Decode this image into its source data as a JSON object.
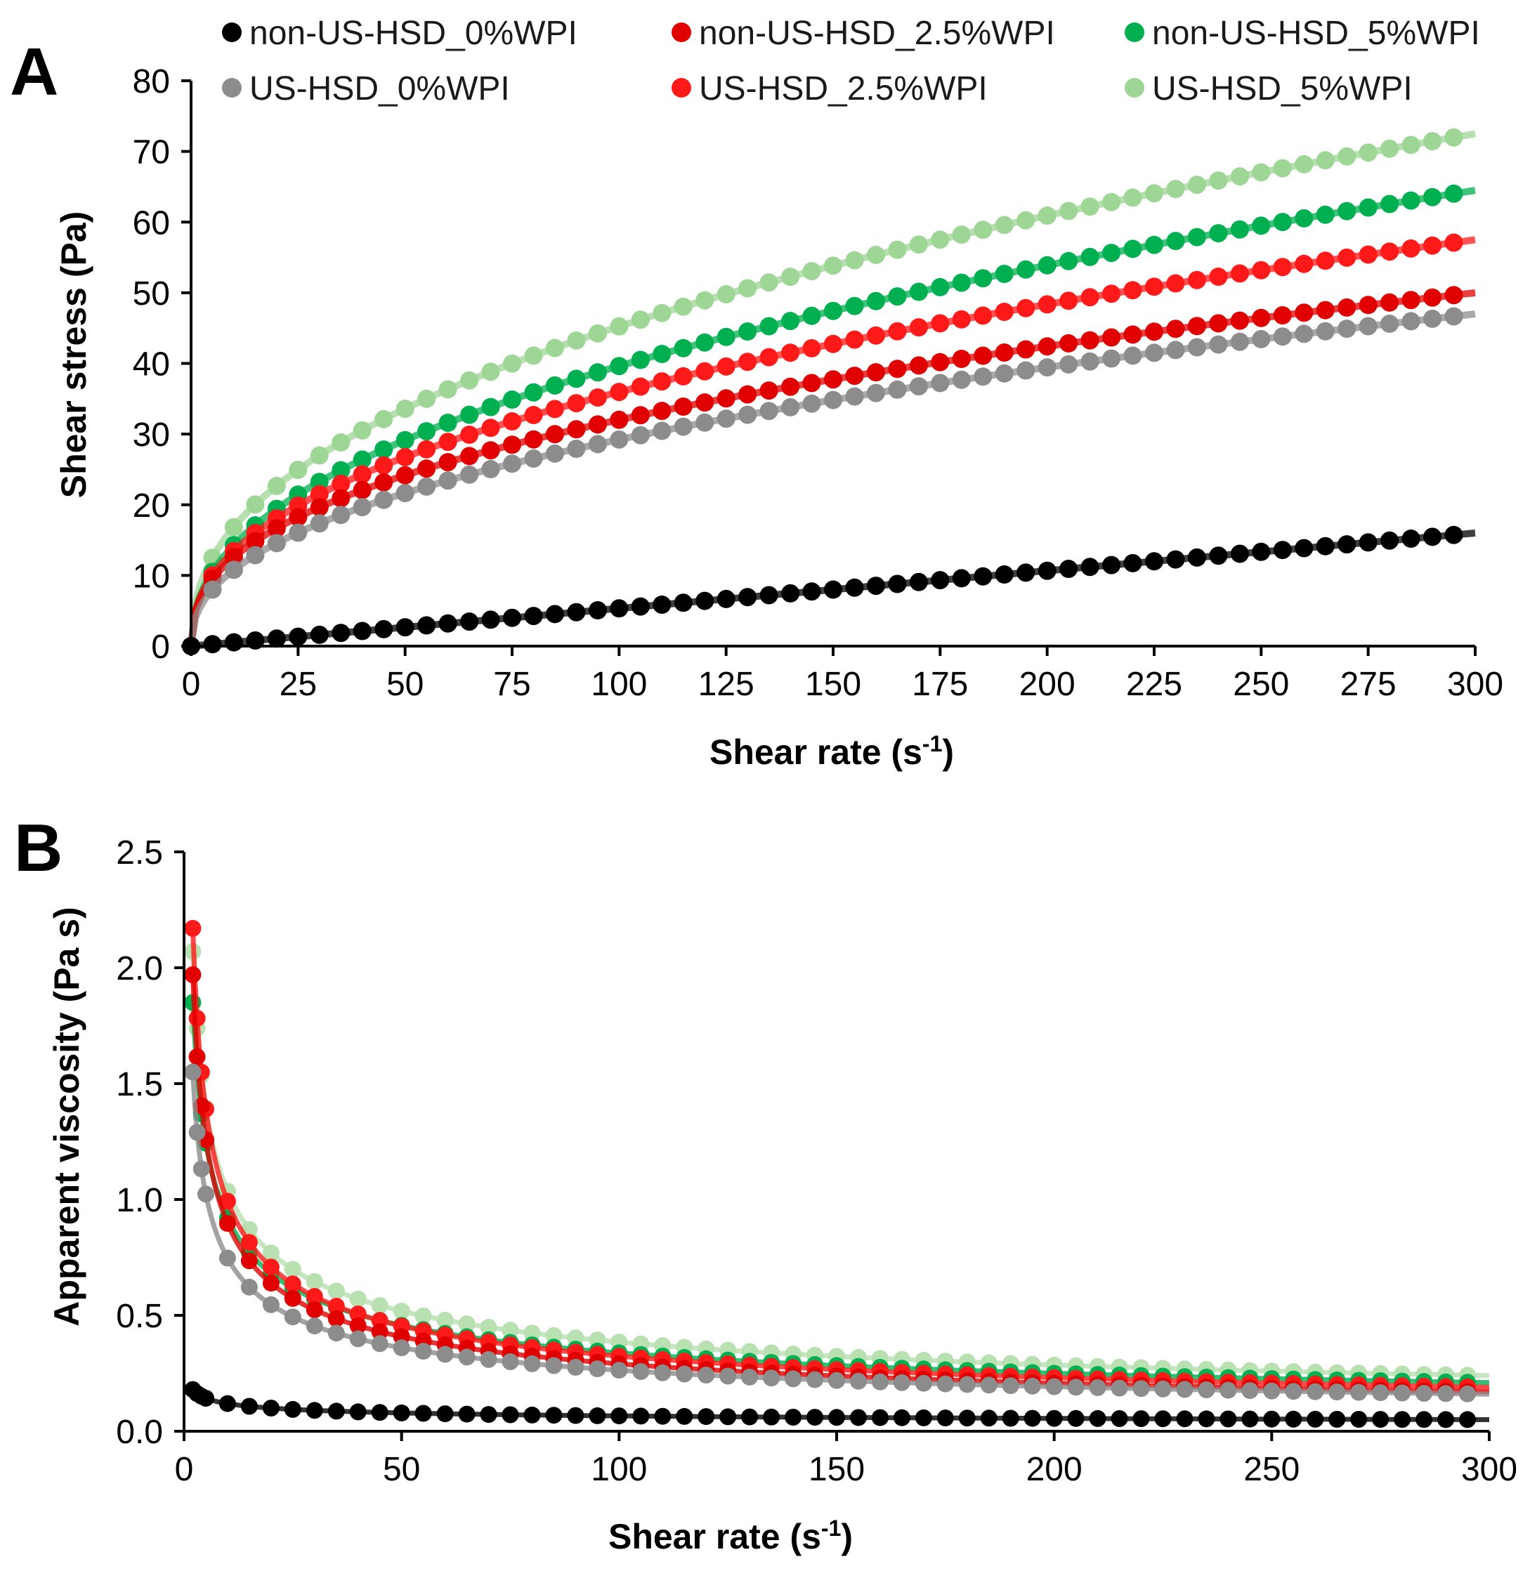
{
  "legend": {
    "entries": [
      {
        "label": "non-US-HSD_0%WPI",
        "color": "#000000"
      },
      {
        "label": "non-US-HSD_2.5%WPI",
        "color": "#e00000"
      },
      {
        "label": "non-US-HSD_5%WPI",
        "color": "#00b050"
      },
      {
        "label": "US-HSD_0%WPI",
        "color": "#8c8c8c"
      },
      {
        "label": "US-HSD_2.5%WPI",
        "color": "#ff1a1a"
      },
      {
        "label": "US-HSD_5%WPI",
        "color": "#9ed696"
      }
    ]
  },
  "chart_data": [
    {
      "panel_label": "A",
      "type": "scatter",
      "xlabel": "Shear rate (s",
      "xlabel_sup": "-1",
      "xlabel_end": ")",
      "ylabel": "Shear stress (Pa)",
      "xlim": [
        0,
        300
      ],
      "ylim": [
        0,
        80
      ],
      "xticks": [
        "0",
        "25",
        "50",
        "75",
        "100",
        "125",
        "150",
        "175",
        "200",
        "225",
        "250",
        "275",
        "300"
      ],
      "yticks": [
        "0",
        "10",
        "20",
        "30",
        "40",
        "50",
        "60",
        "70",
        "80"
      ],
      "model": "fitted curves",
      "series": [
        {
          "name": "non-US-HSD_0%WPI",
          "color": "#000000",
          "k": 0.05,
          "n": 1.0,
          "tau_at_5": 1.3,
          "tau_at_300": 16.0
        },
        {
          "name": "non-US-HSD_2.5%WPI",
          "color": "#e00000",
          "k": 3.0,
          "n": 0.49,
          "tau_at_5": 9.5,
          "tau_at_300": 50.0
        },
        {
          "name": "non-US-HSD_5%WPI",
          "color": "#00b050",
          "k": 2.96,
          "n": 0.54,
          "tau_at_5": 10.5,
          "tau_at_300": 64.5
        },
        {
          "name": "US-HSD_0%WPI",
          "color": "#8c8c8c",
          "k": 2.3,
          "n": 0.53,
          "tau_at_5": 8.0,
          "tau_at_300": 47.0
        },
        {
          "name": "US-HSD_2.5%WPI",
          "color": "#ff1a1a",
          "k": 3.1,
          "n": 0.51,
          "tau_at_5": 10.0,
          "tau_at_300": 57.5
        },
        {
          "name": "US-HSD_5%WPI",
          "color": "#9ed696",
          "k": 4.1,
          "n": 0.5,
          "tau_at_5": 12.5,
          "tau_at_300": 72.5
        }
      ]
    },
    {
      "panel_label": "B",
      "type": "scatter",
      "xlabel": "Shear rate (s",
      "xlabel_sup": "-1",
      "xlabel_end": ")",
      "ylabel": "Apparent viscosity (Pa s)",
      "xlim": [
        0,
        300
      ],
      "ylim": [
        0,
        2.5
      ],
      "xticks": [
        "0",
        "50",
        "100",
        "150",
        "200",
        "250",
        "300"
      ],
      "yticks": [
        "0.0",
        "0.5",
        "1.0",
        "1.5",
        "2.0",
        "2.5"
      ],
      "series": [
        {
          "name": "non-US-HSD_0%WPI",
          "color": "#000000",
          "eta_at_2": 0.18,
          "eta_at_300": 0.05
        },
        {
          "name": "non-US-HSD_2.5%WPI",
          "color": "#e00000",
          "eta_at_2": 1.97,
          "eta_at_300": 0.17
        },
        {
          "name": "non-US-HSD_5%WPI",
          "color": "#00b050",
          "eta_at_2": 1.85,
          "eta_at_300": 0.21
        },
        {
          "name": "US-HSD_0%WPI",
          "color": "#8c8c8c",
          "eta_at_2": 1.55,
          "eta_at_300": 0.16
        },
        {
          "name": "US-HSD_2.5%WPI",
          "color": "#ff1a1a",
          "eta_at_2": 2.17,
          "eta_at_300": 0.19
        },
        {
          "name": "US-HSD_5%WPI",
          "color": "#b8e0b0",
          "eta_at_2": 2.07,
          "eta_at_300": 0.24
        }
      ]
    }
  ]
}
